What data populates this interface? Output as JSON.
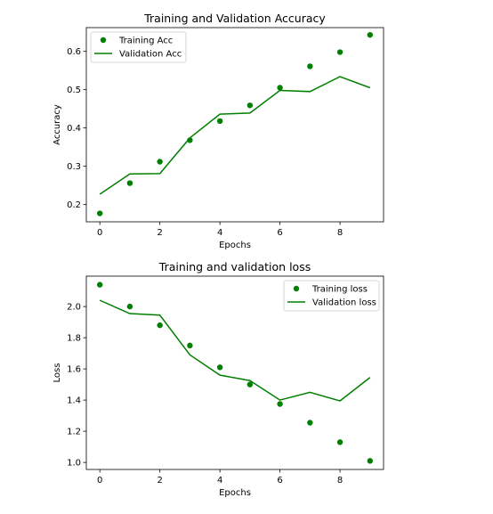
{
  "chart_data": [
    {
      "type": "line",
      "title": "Training and Validation Accuracy",
      "xlabel": "Epochs",
      "ylabel": "Accuracy",
      "xlim": [
        -0.45,
        9.45
      ],
      "ylim": [
        0.155,
        0.662
      ],
      "x_ticks": [
        0,
        2,
        4,
        6,
        8
      ],
      "y_ticks": [
        0.2,
        0.3,
        0.4,
        0.5,
        0.6
      ],
      "grid": false,
      "legend_position": "top-left",
      "x": [
        0,
        1,
        2,
        3,
        4,
        5,
        6,
        7,
        8,
        9
      ],
      "series": [
        {
          "name": "Training Acc",
          "style": "scatter",
          "color": "#008000",
          "values": [
            0.177,
            0.256,
            0.312,
            0.368,
            0.418,
            0.459,
            0.505,
            0.561,
            0.598,
            0.643
          ]
        },
        {
          "name": "Validation Acc",
          "style": "line",
          "color": "#008000",
          "values": [
            0.227,
            0.28,
            0.281,
            0.374,
            0.436,
            0.439,
            0.498,
            0.495,
            0.534,
            0.505
          ]
        }
      ]
    },
    {
      "type": "line",
      "title": "Training and validation loss",
      "xlabel": "Epochs",
      "ylabel": "Loss",
      "xlim": [
        -0.45,
        9.45
      ],
      "ylim": [
        0.955,
        2.195
      ],
      "x_ticks": [
        0,
        2,
        4,
        6,
        8
      ],
      "y_ticks": [
        1.0,
        1.2,
        1.4,
        1.6,
        1.8,
        2.0
      ],
      "grid": false,
      "legend_position": "top-right",
      "x": [
        0,
        1,
        2,
        3,
        4,
        5,
        6,
        7,
        8,
        9
      ],
      "series": [
        {
          "name": "Training loss",
          "style": "scatter",
          "color": "#008000",
          "values": [
            2.14,
            2.0,
            1.88,
            1.75,
            1.61,
            1.5,
            1.375,
            1.255,
            1.13,
            1.01
          ]
        },
        {
          "name": "Validation loss",
          "style": "line",
          "color": "#008000",
          "values": [
            2.04,
            1.955,
            1.945,
            1.69,
            1.56,
            1.525,
            1.4,
            1.45,
            1.395,
            1.545
          ]
        }
      ]
    }
  ]
}
